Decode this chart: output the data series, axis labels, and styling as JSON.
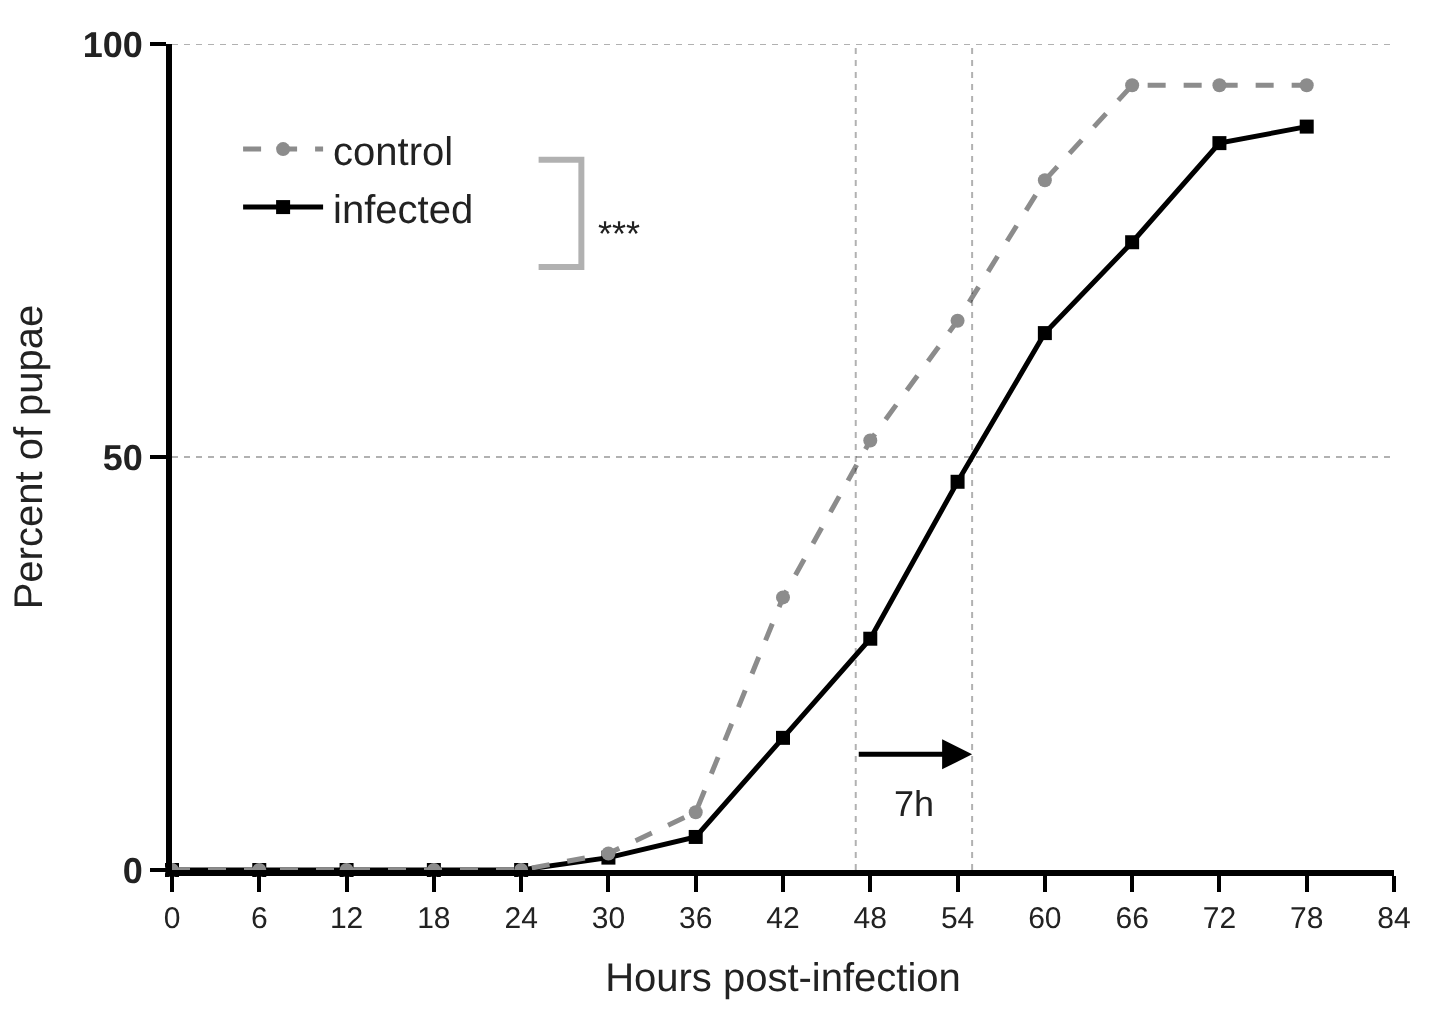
{
  "chart_data": {
    "type": "line",
    "xlabel": "Hours post-infection",
    "ylabel": "Percent of pupae",
    "x": [
      0,
      6,
      12,
      18,
      24,
      30,
      36,
      42,
      48,
      54,
      60,
      66,
      72,
      78
    ],
    "series": [
      {
        "name": "control",
        "color": "#8c8c8c",
        "marker": "circle",
        "line_style": "dashed",
        "values": [
          0,
          0,
          0,
          0,
          0,
          2,
          7,
          33,
          52,
          66.5,
          83.5,
          95,
          95,
          95
        ]
      },
      {
        "name": "infected",
        "color": "#000000",
        "marker": "square",
        "line_style": "solid",
        "values": [
          0,
          0,
          0,
          0,
          0,
          1.5,
          4,
          16,
          28,
          47,
          65,
          76,
          88,
          90
        ]
      }
    ],
    "xlim": [
      0,
      84
    ],
    "xticks": [
      0,
      6,
      12,
      18,
      24,
      30,
      36,
      42,
      48,
      54,
      60,
      66,
      72,
      78,
      84
    ],
    "ylim": [
      0,
      100
    ],
    "yticks": [
      0,
      50,
      100
    ],
    "grid": "y",
    "legend": "top left",
    "ref_lines": [
      {
        "axis": "x",
        "value": 47,
        "line_style": "dotted",
        "color": "#000000"
      },
      {
        "axis": "x",
        "value": 55,
        "line_style": "dotted",
        "color": "#000000"
      }
    ],
    "annotations": [
      "***",
      "7h"
    ]
  }
}
